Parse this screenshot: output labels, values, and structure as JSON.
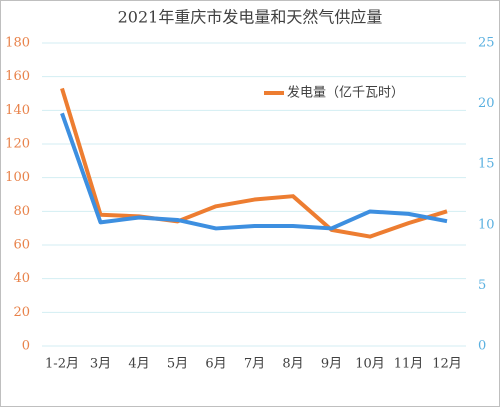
{
  "chart_data": {
    "type": "line",
    "title": "2021年重庆市发电量和天然气供应量",
    "categories": [
      "1-2月",
      "3月",
      "4月",
      "5月",
      "6月",
      "7月",
      "8月",
      "9月",
      "10月",
      "11月",
      "12月"
    ],
    "series": [
      {
        "name": "发电量（亿千瓦时）",
        "color": "#ed7d31",
        "values": [
          153,
          78,
          77,
          74,
          83,
          87,
          89,
          69,
          65,
          73,
          80
        ]
      },
      {
        "color": "#3d8fe0",
        "axis": "y2",
        "values": [
          19.2,
          10.2,
          10.6,
          10.4,
          9.7,
          9.9,
          9.9,
          9.7,
          11.1,
          10.9,
          10.3
        ]
      }
    ],
    "ylim": [
      0,
      180
    ],
    "yticks": [
      0,
      20,
      40,
      60,
      80,
      100,
      120,
      140,
      160,
      180
    ],
    "y2lim": [
      0,
      25
    ],
    "y2ticks": [
      0,
      5,
      10,
      15,
      20,
      25
    ],
    "grid": true,
    "legend": "top-right"
  }
}
